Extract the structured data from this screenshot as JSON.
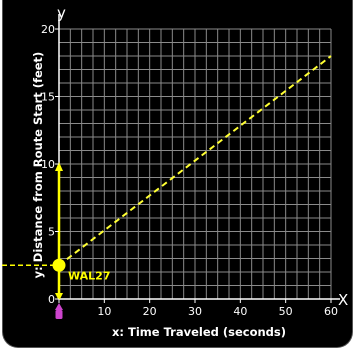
{
  "chart_data": {
    "type": "line",
    "xlabel": "x: Time Traveled (seconds)",
    "ylabel": "y: Distance from Route Start (feet)",
    "x_axis_letter": "X",
    "y_axis_letter": "y",
    "xlim": [
      0,
      60
    ],
    "ylim": [
      0,
      20
    ],
    "x_ticks": [
      0,
      10,
      20,
      30,
      40,
      50,
      60
    ],
    "y_ticks": [
      0,
      5,
      10,
      15,
      20
    ],
    "x_tick_labels": [
      "0",
      "10",
      "20",
      "30",
      "40",
      "50",
      "60"
    ],
    "y_tick_labels": [
      "0",
      "5",
      "10",
      "15",
      "20"
    ],
    "minor_grid_step_x": 2.5,
    "minor_grid_step_y": 1,
    "grid": true,
    "series": [
      {
        "name": "WAL27",
        "points": [
          [
            0,
            2.5
          ],
          [
            60,
            18
          ]
        ],
        "color": "#ffff33",
        "style": "dashed"
      }
    ],
    "marker": {
      "label": "WAL27",
      "x": 0,
      "y": 2.5,
      "color": "#ffff00"
    },
    "y_range_arrow": {
      "from": 0,
      "to": 10,
      "color": "#ffff00"
    },
    "origin_marker_color": "#cc44cc"
  },
  "colors": {
    "background": "#000000",
    "grid": "#8a8a8a",
    "axis": "#ffffff",
    "accent": "#ffff00"
  }
}
